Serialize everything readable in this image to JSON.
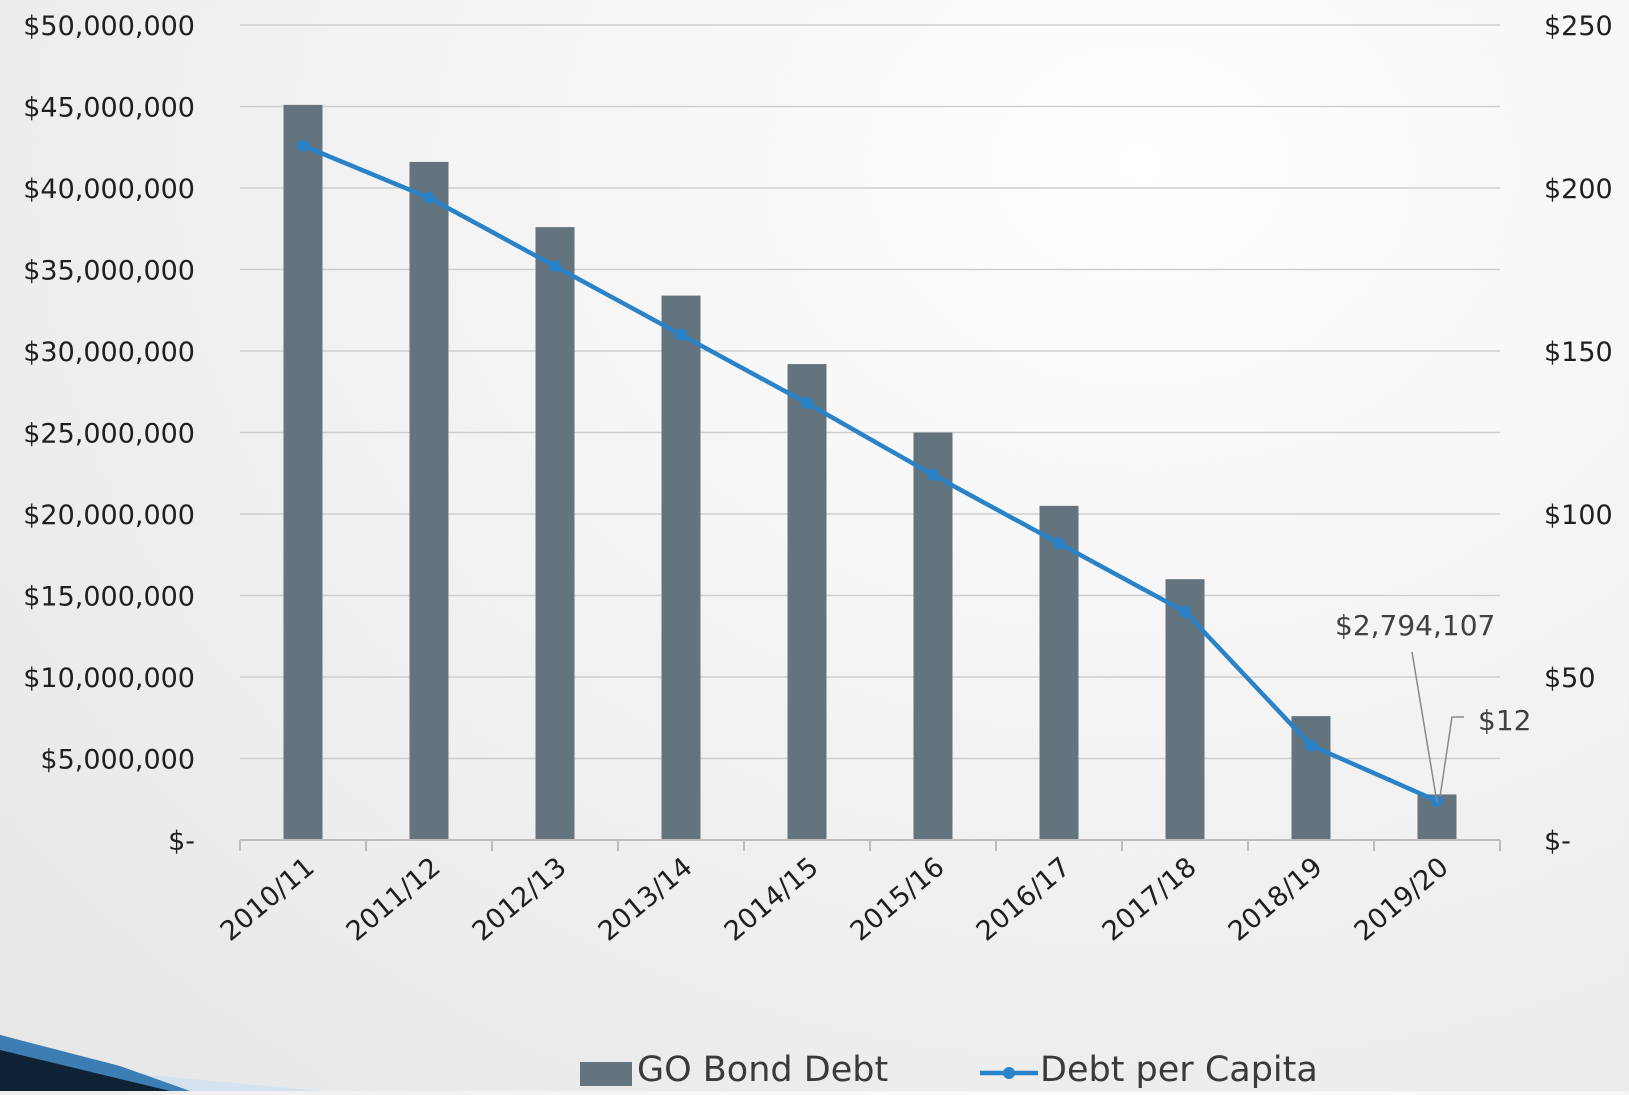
{
  "chart_data": {
    "type": "bar",
    "categories": [
      "2010/11",
      "2011/12",
      "2012/13",
      "2013/14",
      "2014/15",
      "2015/16",
      "2016/17",
      "2017/18",
      "2018/19",
      "2019/20"
    ],
    "series": [
      {
        "name": "GO Bond Debt",
        "type": "bar",
        "axis": "left",
        "color": "#64747e",
        "values": [
          45100000,
          41600000,
          37600000,
          33400000,
          29200000,
          25000000,
          20500000,
          16000000,
          7600000,
          2794107
        ]
      },
      {
        "name": "Debt per Capita",
        "type": "line",
        "axis": "right",
        "color": "#2a83c8",
        "values": [
          213,
          197,
          176,
          155,
          134,
          112,
          91,
          70,
          29,
          12
        ]
      }
    ],
    "y_left": {
      "lim": [
        0,
        50000000
      ],
      "ticks": [
        0,
        5000000,
        10000000,
        15000000,
        20000000,
        25000000,
        30000000,
        35000000,
        40000000,
        45000000,
        50000000
      ],
      "tick_labels": [
        "$-",
        "$5,000,000",
        "$10,000,000",
        "$15,000,000",
        "$20,000,000",
        "$25,000,000",
        "$30,000,000",
        "$35,000,000",
        "$40,000,000",
        "$45,000,000",
        "$50,000,000"
      ]
    },
    "y_right": {
      "lim": [
        0,
        250
      ],
      "ticks": [
        0,
        50,
        100,
        150,
        200,
        250
      ],
      "tick_labels": [
        "$-",
        "$50",
        "$100",
        "$150",
        "$200",
        "$250"
      ]
    },
    "annotations": [
      {
        "text": "$2,794,107",
        "series": "GO Bond Debt",
        "category": "2019/20"
      },
      {
        "text": "$12",
        "series": "Debt per Capita",
        "category": "2019/20"
      }
    ],
    "grid": true,
    "legend_position": "bottom"
  }
}
